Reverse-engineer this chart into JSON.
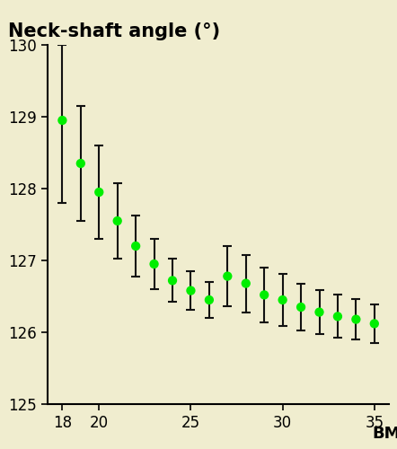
{
  "title": "Neck-shaft angle (°)",
  "xlabel": "BMI",
  "background_color": "#f0edcf",
  "outer_background": "#f0edcf",
  "xlim": [
    17.2,
    35.8
  ],
  "ylim": [
    125,
    130
  ],
  "yticks": [
    125,
    126,
    127,
    128,
    129,
    130
  ],
  "xticks": [
    18,
    20,
    25,
    30,
    35
  ],
  "bmi_values": [
    18,
    19,
    20,
    21,
    22,
    23,
    24,
    25,
    26,
    27,
    28,
    29,
    30,
    31,
    32,
    33,
    34,
    35
  ],
  "nsa_values": [
    128.95,
    128.35,
    127.95,
    127.55,
    127.2,
    126.95,
    126.72,
    126.58,
    126.45,
    126.78,
    126.68,
    126.52,
    126.45,
    126.35,
    126.28,
    126.22,
    126.18,
    126.12
  ],
  "err_lower": [
    1.15,
    0.8,
    0.65,
    0.52,
    0.42,
    0.35,
    0.3,
    0.27,
    0.25,
    0.42,
    0.4,
    0.38,
    0.36,
    0.33,
    0.31,
    0.3,
    0.28,
    0.27
  ],
  "err_upper": [
    1.05,
    0.8,
    0.65,
    0.52,
    0.42,
    0.35,
    0.3,
    0.27,
    0.25,
    0.42,
    0.4,
    0.38,
    0.36,
    0.33,
    0.31,
    0.3,
    0.28,
    0.27
  ],
  "dot_color": "#00ee00",
  "line_color": "#111111",
  "dot_size": 55,
  "capsize": 3.5,
  "title_fontsize": 15,
  "label_fontsize": 13,
  "tick_fontsize": 12
}
